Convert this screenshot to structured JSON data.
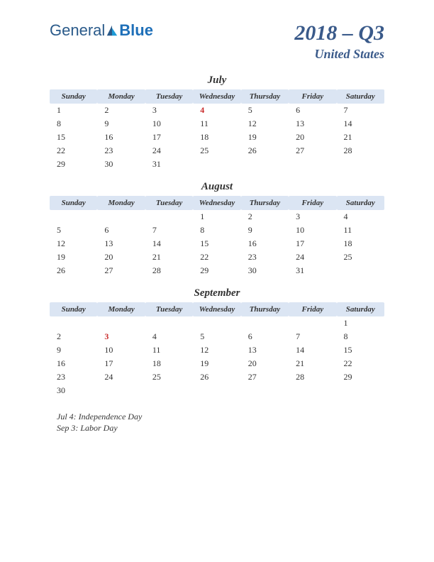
{
  "logo": {
    "part1": "General",
    "part2": "Blue"
  },
  "title": {
    "main": "2018 – Q3",
    "sub": "United States"
  },
  "colors": {
    "header_bg": "#dbe5f3",
    "title_color": "#3a5a8a",
    "holiday_color": "#c92a2a",
    "text_color": "#333333",
    "background": "#ffffff"
  },
  "typography": {
    "title_fontsize": 30,
    "subtitle_fontsize": 18,
    "month_fontsize": 15,
    "dayheader_fontsize": 11,
    "cell_fontsize": 12,
    "holiday_list_fontsize": 12
  },
  "day_headers": [
    "Sunday",
    "Monday",
    "Tuesday",
    "Wednesday",
    "Thursday",
    "Friday",
    "Saturday"
  ],
  "months": [
    {
      "name": "July",
      "weeks": [
        [
          {
            "d": "1"
          },
          {
            "d": "2"
          },
          {
            "d": "3"
          },
          {
            "d": "4",
            "holiday": true
          },
          {
            "d": "5"
          },
          {
            "d": "6"
          },
          {
            "d": "7"
          }
        ],
        [
          {
            "d": "8"
          },
          {
            "d": "9"
          },
          {
            "d": "10"
          },
          {
            "d": "11"
          },
          {
            "d": "12"
          },
          {
            "d": "13"
          },
          {
            "d": "14"
          }
        ],
        [
          {
            "d": "15"
          },
          {
            "d": "16"
          },
          {
            "d": "17"
          },
          {
            "d": "18"
          },
          {
            "d": "19"
          },
          {
            "d": "20"
          },
          {
            "d": "21"
          }
        ],
        [
          {
            "d": "22"
          },
          {
            "d": "23"
          },
          {
            "d": "24"
          },
          {
            "d": "25"
          },
          {
            "d": "26"
          },
          {
            "d": "27"
          },
          {
            "d": "28"
          }
        ],
        [
          {
            "d": "29"
          },
          {
            "d": "30"
          },
          {
            "d": "31"
          },
          {
            "d": ""
          },
          {
            "d": ""
          },
          {
            "d": ""
          },
          {
            "d": ""
          }
        ]
      ]
    },
    {
      "name": "August",
      "weeks": [
        [
          {
            "d": ""
          },
          {
            "d": ""
          },
          {
            "d": ""
          },
          {
            "d": "1"
          },
          {
            "d": "2"
          },
          {
            "d": "3"
          },
          {
            "d": "4"
          }
        ],
        [
          {
            "d": "5"
          },
          {
            "d": "6"
          },
          {
            "d": "7"
          },
          {
            "d": "8"
          },
          {
            "d": "9"
          },
          {
            "d": "10"
          },
          {
            "d": "11"
          }
        ],
        [
          {
            "d": "12"
          },
          {
            "d": "13"
          },
          {
            "d": "14"
          },
          {
            "d": "15"
          },
          {
            "d": "16"
          },
          {
            "d": "17"
          },
          {
            "d": "18"
          }
        ],
        [
          {
            "d": "19"
          },
          {
            "d": "20"
          },
          {
            "d": "21"
          },
          {
            "d": "22"
          },
          {
            "d": "23"
          },
          {
            "d": "24"
          },
          {
            "d": "25"
          }
        ],
        [
          {
            "d": "26"
          },
          {
            "d": "27"
          },
          {
            "d": "28"
          },
          {
            "d": "29"
          },
          {
            "d": "30"
          },
          {
            "d": "31"
          },
          {
            "d": ""
          }
        ]
      ]
    },
    {
      "name": "September",
      "weeks": [
        [
          {
            "d": ""
          },
          {
            "d": ""
          },
          {
            "d": ""
          },
          {
            "d": ""
          },
          {
            "d": ""
          },
          {
            "d": ""
          },
          {
            "d": "1"
          }
        ],
        [
          {
            "d": "2"
          },
          {
            "d": "3",
            "holiday": true
          },
          {
            "d": "4"
          },
          {
            "d": "5"
          },
          {
            "d": "6"
          },
          {
            "d": "7"
          },
          {
            "d": "8"
          }
        ],
        [
          {
            "d": "9"
          },
          {
            "d": "10"
          },
          {
            "d": "11"
          },
          {
            "d": "12"
          },
          {
            "d": "13"
          },
          {
            "d": "14"
          },
          {
            "d": "15"
          }
        ],
        [
          {
            "d": "16"
          },
          {
            "d": "17"
          },
          {
            "d": "18"
          },
          {
            "d": "19"
          },
          {
            "d": "20"
          },
          {
            "d": "21"
          },
          {
            "d": "22"
          }
        ],
        [
          {
            "d": "23"
          },
          {
            "d": "24"
          },
          {
            "d": "25"
          },
          {
            "d": "26"
          },
          {
            "d": "27"
          },
          {
            "d": "28"
          },
          {
            "d": "29"
          }
        ],
        [
          {
            "d": "30"
          },
          {
            "d": ""
          },
          {
            "d": ""
          },
          {
            "d": ""
          },
          {
            "d": ""
          },
          {
            "d": ""
          },
          {
            "d": ""
          }
        ]
      ]
    }
  ],
  "holiday_list": [
    "Jul 4: Independence Day",
    "Sep 3: Labor Day"
  ]
}
